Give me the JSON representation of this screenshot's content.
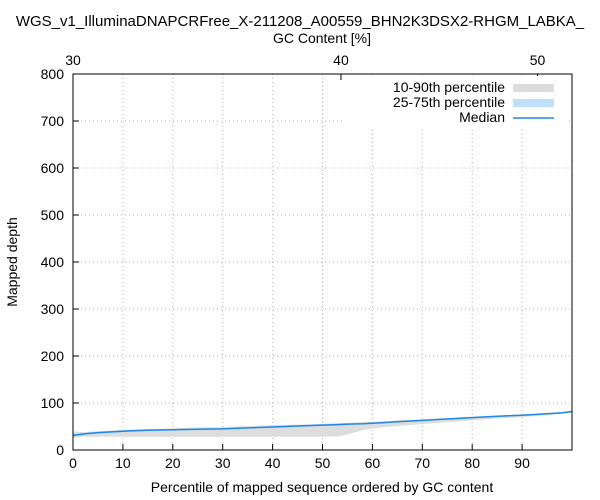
{
  "chart_data": {
    "type": "area",
    "title": "WGS_v1_IlluminaDNAPCRFree_X-211208_A00559_BHN2K3DSX2-RHGM_LABKA_",
    "xlabel": "Percentile of mapped sequence ordered by GC content",
    "ylabel": "Mapped depth",
    "x2label": "GC Content [%]",
    "xlim": [
      0,
      100
    ],
    "ylim": [
      0,
      800
    ],
    "grid": true,
    "legend_position": "top-right",
    "xticks": [
      0,
      10,
      20,
      30,
      40,
      50,
      60,
      70,
      80,
      90
    ],
    "yticks": [
      0,
      100,
      200,
      300,
      400,
      500,
      600,
      700,
      800
    ],
    "x2ticks": [
      {
        "label": "30",
        "x": 0
      },
      {
        "label": "40",
        "x": 53.7
      },
      {
        "label": "50",
        "x": 93.1
      }
    ],
    "x": [
      0,
      2,
      5,
      10,
      15,
      20,
      25,
      30,
      35,
      40,
      45,
      50,
      53,
      55,
      58,
      60,
      62,
      65,
      70,
      75,
      80,
      85,
      90,
      95,
      98,
      100
    ],
    "series": [
      {
        "name": "10-90th percentile",
        "lower": [
          25,
          28,
          28,
          28,
          28,
          28,
          28,
          28,
          28,
          28,
          28,
          28,
          29,
          33,
          42,
          46,
          48,
          51,
          55,
          59,
          63,
          67,
          70,
          74,
          77,
          80
        ],
        "upper": [
          40,
          38,
          40,
          43,
          45,
          46,
          48,
          49,
          51,
          53,
          54,
          56,
          57,
          58,
          59,
          60,
          61,
          63,
          65,
          68,
          71,
          73,
          76,
          79,
          81,
          83
        ]
      },
      {
        "name": "25-75th percentile",
        "lower": [
          28,
          31,
          34,
          38,
          40,
          41,
          42,
          44,
          46,
          47,
          49,
          51,
          52,
          53,
          55,
          56,
          57,
          59,
          62,
          65,
          68,
          71,
          74,
          77,
          79,
          81
        ],
        "upper": [
          35,
          36,
          39,
          42,
          43,
          44,
          45,
          47,
          48,
          50,
          52,
          54,
          55,
          56,
          57,
          58,
          59,
          61,
          63,
          66,
          70,
          72,
          75,
          78,
          80,
          83
        ]
      },
      {
        "name": "Median",
        "values": [
          31,
          34,
          37,
          40,
          42,
          43,
          44,
          45,
          47,
          49,
          51,
          53,
          54,
          55,
          56,
          57,
          58,
          60,
          63,
          66,
          69,
          72,
          74,
          77,
          79,
          82
        ]
      }
    ],
    "colors": {
      "band_10_90": "#dddddd",
      "band_25_75": "#bfe0fa",
      "median": "#1e88e5",
      "grid": "#b4b4b4"
    }
  }
}
